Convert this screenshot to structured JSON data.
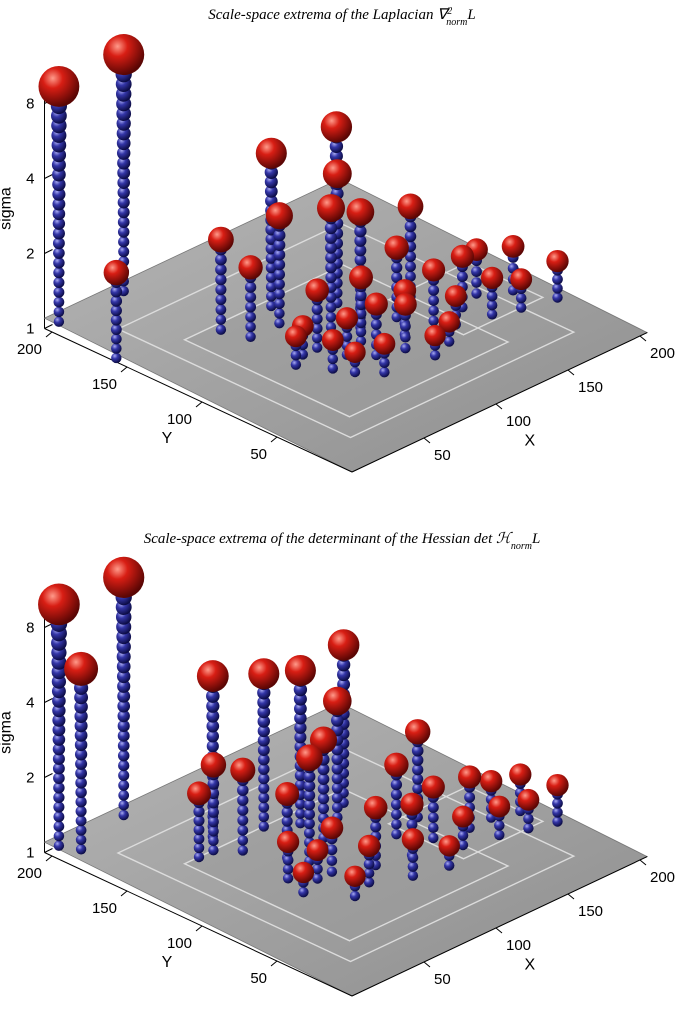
{
  "chart_data": [
    {
      "type": "scatter3d",
      "title_prefix": "Scale-space extrema of the Laplacian ∇",
      "title_sup": "2",
      "title_sub": "norm",
      "title_suffix": "L",
      "xlabel": "X",
      "ylabel": "Y",
      "zlabel": "sigma",
      "x_ticks": [
        50,
        100,
        150,
        200
      ],
      "y_ticks": [
        50,
        100,
        150,
        200
      ],
      "z_ticks": [
        1,
        2,
        4,
        8
      ],
      "colors": {
        "extremum": "#d81e14",
        "trail": "#3436a8",
        "plane": "#8e8e8e"
      },
      "points": [
        {
          "x": 10,
          "y": 205,
          "sigma": 8.8
        },
        {
          "x": 55,
          "y": 205,
          "sigma": 8.9
        },
        {
          "x": 3,
          "y": 160,
          "sigma": 2.2
        },
        {
          "x": 95,
          "y": 145,
          "sigma": 4.1
        },
        {
          "x": 135,
          "y": 140,
          "sigma": 4.2
        },
        {
          "x": 120,
          "y": 125,
          "sigma": 3.3
        },
        {
          "x": 60,
          "y": 145,
          "sigma": 2.3
        },
        {
          "x": 65,
          "y": 130,
          "sigma": 1.9
        },
        {
          "x": 85,
          "y": 130,
          "sigma": 2.7
        },
        {
          "x": 100,
          "y": 110,
          "sigma": 3.0
        },
        {
          "x": 110,
          "y": 100,
          "sigma": 2.9
        },
        {
          "x": 150,
          "y": 105,
          "sigma": 2.3
        },
        {
          "x": 130,
          "y": 95,
          "sigma": 1.9
        },
        {
          "x": 140,
          "y": 80,
          "sigma": 1.6
        },
        {
          "x": 120,
          "y": 80,
          "sigma": 1.5
        },
        {
          "x": 100,
          "y": 90,
          "sigma": 1.8
        },
        {
          "x": 80,
          "y": 100,
          "sigma": 1.7
        },
        {
          "x": 85,
          "y": 85,
          "sigma": 1.4
        },
        {
          "x": 70,
          "y": 100,
          "sigma": 1.3
        },
        {
          "x": 95,
          "y": 75,
          "sigma": 1.6
        },
        {
          "x": 110,
          "y": 70,
          "sigma": 1.5
        },
        {
          "x": 160,
          "y": 80,
          "sigma": 1.6
        },
        {
          "x": 175,
          "y": 85,
          "sigma": 1.5
        },
        {
          "x": 190,
          "y": 75,
          "sigma": 1.5
        },
        {
          "x": 165,
          "y": 65,
          "sigma": 1.4
        },
        {
          "x": 180,
          "y": 60,
          "sigma": 1.3
        },
        {
          "x": 200,
          "y": 55,
          "sigma": 1.4
        },
        {
          "x": 60,
          "y": 95,
          "sigma": 1.3
        },
        {
          "x": 70,
          "y": 80,
          "sigma": 1.3
        },
        {
          "x": 75,
          "y": 70,
          "sigma": 1.2
        },
        {
          "x": 85,
          "y": 60,
          "sigma": 1.3
        },
        {
          "x": 130,
          "y": 60,
          "sigma": 1.2
        },
        {
          "x": 145,
          "y": 70,
          "sigma": 1.3
        },
        {
          "x": 115,
          "y": 55,
          "sigma": 1.2
        }
      ]
    },
    {
      "type": "scatter3d",
      "title_prefix": "Scale-space extrema of the determinant of the Hessian det ℋ",
      "title_sup": "",
      "title_sub": "norm",
      "title_suffix": "L",
      "xlabel": "X",
      "ylabel": "Y",
      "zlabel": "sigma",
      "x_ticks": [
        50,
        100,
        150,
        200
      ],
      "y_ticks": [
        50,
        100,
        150,
        200
      ],
      "z_ticks": [
        1,
        2,
        4,
        8
      ],
      "colors": {
        "extremum": "#d81e14",
        "trail": "#3436a8",
        "plane": "#8e8e8e"
      },
      "points": [
        {
          "x": 10,
          "y": 205,
          "sigma": 9.3
        },
        {
          "x": 55,
          "y": 205,
          "sigma": 9.0
        },
        {
          "x": 15,
          "y": 195,
          "sigma": 5.3
        },
        {
          "x": 70,
          "y": 160,
          "sigma": 4.4
        },
        {
          "x": 95,
          "y": 150,
          "sigma": 4.1
        },
        {
          "x": 110,
          "y": 140,
          "sigma": 4.1
        },
        {
          "x": 140,
          "y": 140,
          "sigma": 4.3
        },
        {
          "x": 120,
          "y": 125,
          "sigma": 3.2
        },
        {
          "x": 100,
          "y": 115,
          "sigma": 2.7
        },
        {
          "x": 85,
          "y": 110,
          "sigma": 2.6
        },
        {
          "x": 60,
          "y": 150,
          "sigma": 2.2
        },
        {
          "x": 70,
          "y": 140,
          "sigma": 2.1
        },
        {
          "x": 50,
          "y": 150,
          "sigma": 1.8
        },
        {
          "x": 80,
          "y": 120,
          "sigma": 1.8
        },
        {
          "x": 155,
          "y": 105,
          "sigma": 2.2
        },
        {
          "x": 135,
          "y": 100,
          "sigma": 1.9
        },
        {
          "x": 145,
          "y": 85,
          "sigma": 1.6
        },
        {
          "x": 125,
          "y": 80,
          "sigma": 1.6
        },
        {
          "x": 105,
          "y": 85,
          "sigma": 1.7
        },
        {
          "x": 85,
          "y": 95,
          "sigma": 1.5
        },
        {
          "x": 75,
          "y": 95,
          "sigma": 1.3
        },
        {
          "x": 65,
          "y": 105,
          "sigma": 1.4
        },
        {
          "x": 60,
          "y": 90,
          "sigma": 1.2
        },
        {
          "x": 90,
          "y": 75,
          "sigma": 1.4
        },
        {
          "x": 110,
          "y": 65,
          "sigma": 1.4
        },
        {
          "x": 165,
          "y": 80,
          "sigma": 1.6
        },
        {
          "x": 180,
          "y": 80,
          "sigma": 1.4
        },
        {
          "x": 195,
          "y": 75,
          "sigma": 1.4
        },
        {
          "x": 170,
          "y": 65,
          "sigma": 1.3
        },
        {
          "x": 185,
          "y": 60,
          "sigma": 1.3
        },
        {
          "x": 200,
          "y": 55,
          "sigma": 1.4
        },
        {
          "x": 75,
          "y": 70,
          "sigma": 1.2
        },
        {
          "x": 130,
          "y": 60,
          "sigma": 1.2
        },
        {
          "x": 150,
          "y": 70,
          "sigma": 1.3
        }
      ]
    }
  ]
}
